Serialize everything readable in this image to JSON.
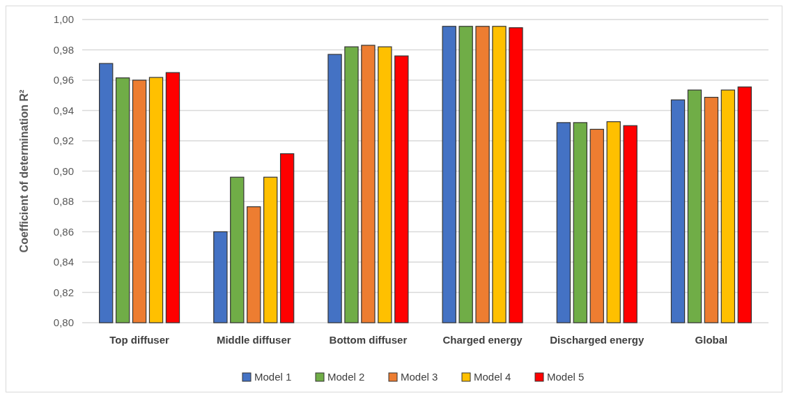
{
  "chart_data": {
    "type": "bar",
    "ylabel": "Coefficient of determination R²",
    "categories": [
      "Top diffuser",
      "Middle diffuser",
      "Bottom diffuser",
      "Charged energy",
      "Discharged energy",
      "Global"
    ],
    "series": [
      {
        "name": "Model 1",
        "color": "#4472c4",
        "values": [
          0.971,
          0.86,
          0.977,
          0.9955,
          0.932,
          0.947
        ]
      },
      {
        "name": "Model 2",
        "color": "#70ad47",
        "values": [
          0.9615,
          0.896,
          0.982,
          0.9955,
          0.932,
          0.9535
        ]
      },
      {
        "name": "Model 3",
        "color": "#ed7d31",
        "values": [
          0.96,
          0.8765,
          0.983,
          0.9955,
          0.9276,
          0.9487
        ]
      },
      {
        "name": "Model 4",
        "color": "#ffc000",
        "values": [
          0.9618,
          0.896,
          0.982,
          0.9955,
          0.9326,
          0.9535
        ]
      },
      {
        "name": "Model 5",
        "color": "#ff0000",
        "values": [
          0.965,
          0.9115,
          0.976,
          0.9946,
          0.93,
          0.9555
        ]
      }
    ],
    "ylim": [
      0.8,
      1.0
    ],
    "yticks": [
      {
        "value": 0.8,
        "label": "0,80"
      },
      {
        "value": 0.82,
        "label": "0,82"
      },
      {
        "value": 0.84,
        "label": "0,84"
      },
      {
        "value": 0.86,
        "label": "0,86"
      },
      {
        "value": 0.88,
        "label": "0,88"
      },
      {
        "value": 0.9,
        "label": "0,90"
      },
      {
        "value": 0.92,
        "label": "0,92"
      },
      {
        "value": 0.94,
        "label": "0,94"
      },
      {
        "value": 0.96,
        "label": "0,96"
      },
      {
        "value": 0.98,
        "label": "0,98"
      },
      {
        "value": 1.0,
        "label": "1,00"
      }
    ],
    "grid": "y",
    "legend": "bottom"
  }
}
